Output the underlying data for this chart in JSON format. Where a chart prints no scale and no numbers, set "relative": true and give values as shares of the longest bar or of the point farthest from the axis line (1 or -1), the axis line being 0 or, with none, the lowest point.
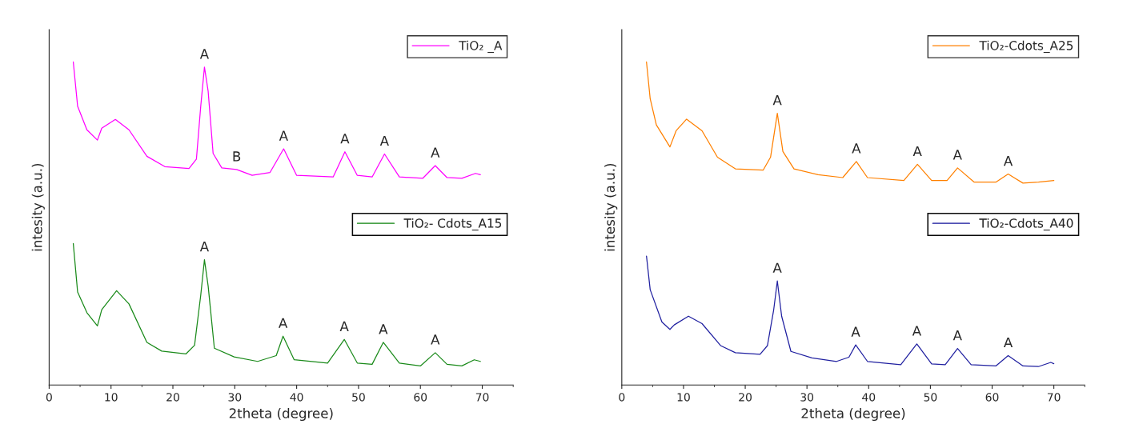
{
  "chart_data": [
    {
      "type": "line",
      "relative": true,
      "xlabel": "2theta (degree)",
      "ylabel": "intesity (a.u.)",
      "xlim": [
        0,
        75
      ],
      "xticks": [
        0,
        10,
        20,
        30,
        40,
        50,
        60,
        70
      ],
      "grid": false,
      "legend": "right",
      "line_style": "solid",
      "marker": "none",
      "series": [
        {
          "name": "TiO₂ _A",
          "color": "#ff00ff",
          "x": [
            3.9,
            4.6,
            6.1,
            7.8,
            8.5,
            10.7,
            12.9,
            15.8,
            18.7,
            22.6,
            23.8,
            24.5,
            25.1,
            25.7,
            26.5,
            27.9,
            30.3,
            32.8,
            35.7,
            37.9,
            40.0,
            45.9,
            47.8,
            49.8,
            52.2,
            54.2,
            56.6,
            60.4,
            62.4,
            64.3,
            66.7,
            68.9,
            69.7
          ],
          "values": [
            1.0,
            0.863,
            0.79,
            0.758,
            0.795,
            0.822,
            0.79,
            0.708,
            0.676,
            0.67,
            0.699,
            0.863,
            0.984,
            0.909,
            0.717,
            0.672,
            0.667,
            0.649,
            0.658,
            0.731,
            0.649,
            0.644,
            0.722,
            0.649,
            0.644,
            0.715,
            0.644,
            0.64,
            0.679,
            0.642,
            0.64,
            0.655,
            0.651
          ]
        },
        {
          "name": "TiO₂- Cdots_A15",
          "color": "#1a8a1a",
          "x": [
            3.9,
            4.6,
            6.1,
            7.8,
            8.5,
            10.9,
            12.9,
            15.8,
            18.2,
            22.1,
            23.5,
            24.5,
            25.1,
            25.7,
            26.7,
            29.9,
            33.7,
            36.7,
            37.8,
            39.6,
            45.0,
            47.7,
            49.8,
            52.2,
            54.0,
            56.6,
            60.0,
            62.4,
            64.3,
            66.7,
            68.7,
            69.7
          ],
          "values": [
            0.438,
            0.288,
            0.224,
            0.183,
            0.233,
            0.292,
            0.251,
            0.132,
            0.105,
            0.096,
            0.123,
            0.278,
            0.388,
            0.306,
            0.114,
            0.087,
            0.073,
            0.091,
            0.151,
            0.078,
            0.068,
            0.141,
            0.068,
            0.064,
            0.132,
            0.068,
            0.059,
            0.1,
            0.064,
            0.059,
            0.078,
            0.073
          ]
        }
      ],
      "annotations": [
        {
          "text": "A",
          "x": 25.1,
          "y": 0.984
        },
        {
          "text": "B",
          "x": 30.3,
          "y": 0.667
        },
        {
          "text": "A",
          "x": 37.9,
          "y": 0.731
        },
        {
          "text": "A",
          "x": 47.8,
          "y": 0.722
        },
        {
          "text": "A",
          "x": 54.2,
          "y": 0.715
        },
        {
          "text": "A",
          "x": 62.4,
          "y": 0.679
        },
        {
          "text": "A",
          "x": 25.1,
          "y": 0.388
        },
        {
          "text": "A",
          "x": 37.8,
          "y": 0.151
        },
        {
          "text": "A",
          "x": 47.7,
          "y": 0.141
        },
        {
          "text": "A",
          "x": 54.0,
          "y": 0.132
        },
        {
          "text": "A",
          "x": 62.4,
          "y": 0.1
        }
      ]
    },
    {
      "type": "line",
      "relative": true,
      "xlabel": "2theta (degree)",
      "ylabel": "intesity (a.u.)",
      "xlim": [
        0,
        75
      ],
      "xticks": [
        0,
        10,
        20,
        30,
        40,
        50,
        60,
        70
      ],
      "grid": false,
      "legend": "right",
      "line_style": "solid",
      "marker": "none",
      "series": [
        {
          "name": "TiO₂-Cdots_A25",
          "color": "#ff8000",
          "x": [
            4.0,
            4.6,
            5.6,
            7.8,
            8.8,
            10.5,
            13.0,
            15.5,
            18.4,
            22.9,
            24.1,
            25.2,
            26.1,
            27.9,
            31.8,
            35.8,
            38.0,
            39.8,
            45.7,
            47.9,
            50.2,
            52.7,
            54.4,
            57.1,
            60.6,
            62.6,
            65.0,
            67.5,
            70.0
          ],
          "values": [
            1.0,
            0.886,
            0.805,
            0.737,
            0.787,
            0.823,
            0.787,
            0.705,
            0.669,
            0.665,
            0.705,
            0.841,
            0.723,
            0.669,
            0.651,
            0.642,
            0.692,
            0.642,
            0.633,
            0.683,
            0.633,
            0.633,
            0.672,
            0.628,
            0.628,
            0.653,
            0.625,
            0.628,
            0.633
          ]
        },
        {
          "name": "TiO₂-Cdots_A40",
          "color": "#2020a0",
          "x": [
            4.0,
            4.6,
            6.5,
            7.8,
            8.5,
            10.8,
            13.0,
            16.0,
            18.4,
            22.4,
            23.6,
            24.6,
            25.2,
            25.9,
            27.4,
            30.8,
            34.8,
            36.8,
            37.9,
            39.8,
            45.2,
            47.8,
            50.2,
            52.4,
            54.4,
            56.6,
            60.6,
            62.6,
            65.0,
            67.5,
            69.5,
            70.0
          ],
          "values": [
            0.399,
            0.295,
            0.195,
            0.172,
            0.186,
            0.213,
            0.19,
            0.122,
            0.1,
            0.095,
            0.122,
            0.231,
            0.322,
            0.213,
            0.104,
            0.084,
            0.073,
            0.086,
            0.124,
            0.073,
            0.063,
            0.127,
            0.065,
            0.063,
            0.113,
            0.063,
            0.059,
            0.091,
            0.059,
            0.057,
            0.07,
            0.066
          ]
        }
      ],
      "annotations": [
        {
          "text": "A",
          "x": 25.2,
          "y": 0.841
        },
        {
          "text": "A",
          "x": 38.0,
          "y": 0.692
        },
        {
          "text": "A",
          "x": 47.9,
          "y": 0.683
        },
        {
          "text": "A",
          "x": 54.4,
          "y": 0.672
        },
        {
          "text": "A",
          "x": 62.6,
          "y": 0.653
        },
        {
          "text": "A",
          "x": 25.2,
          "y": 0.322
        },
        {
          "text": "A",
          "x": 37.9,
          "y": 0.124
        },
        {
          "text": "A",
          "x": 47.8,
          "y": 0.127
        },
        {
          "text": "A",
          "x": 54.4,
          "y": 0.113
        },
        {
          "text": "A",
          "x": 62.6,
          "y": 0.091
        }
      ]
    }
  ]
}
